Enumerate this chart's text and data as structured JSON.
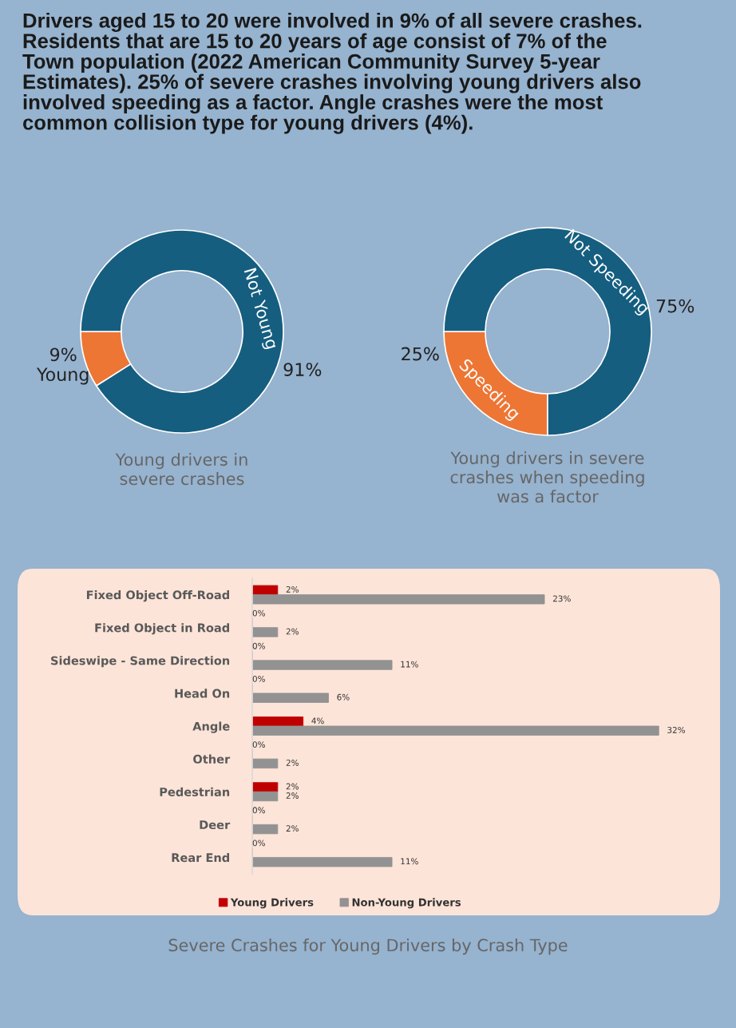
{
  "chart_data": [
    {
      "type": "donut",
      "title": "Young drivers in\nsevere crashes",
      "annotations": [
        "Drivers aged 15 to 20 were involved in 9% of all severe crashes.\nResidents that are 15 to 20 years of age consist of 7% of the\nTown population (2022 American Community Survey 5-year\nEstimates). 25% of severe crashes involving young drivers also\ninvolved speeding as a factor. Angle crashes were the most\ncommon collision type for young drivers (4%)."
      ],
      "categories": [
        "Young",
        "Not Young"
      ],
      "values": [
        9,
        91
      ],
      "colors": [
        "#ed7634",
        "#155e80"
      ],
      "value_labels": [
        "9%",
        "91%"
      ]
    },
    {
      "type": "donut",
      "title": "Young drivers in severe\ncrashes when speeding\nwas a factor",
      "categories": [
        "Speeding",
        "Not Speeding"
      ],
      "values": [
        25,
        75
      ],
      "colors": [
        "#ed7634",
        "#155e80"
      ],
      "value_labels": [
        "25%",
        "75%"
      ]
    },
    {
      "type": "bar",
      "orientation": "horizontal",
      "title": "Severe Crashes for Young Drivers by Crash Type",
      "legend": "bottom",
      "categories": [
        "Fixed Object Off-Road",
        "Fixed Object in Road",
        "Sideswipe - Same Direction",
        "Head On",
        "Angle",
        "Other",
        "Pedestrian",
        "Deer",
        "Rear End"
      ],
      "series": [
        {
          "name": "Young Drivers",
          "color": "#c00000",
          "values": [
            2,
            0,
            0,
            0,
            4,
            0,
            2,
            0,
            0
          ],
          "value_labels": [
            "2%",
            "0%",
            "0%",
            "0%",
            "4%",
            "0%",
            "2%",
            "0%",
            "0%"
          ]
        },
        {
          "name": "Non-Young Drivers",
          "color": "#929292",
          "values": [
            23,
            2,
            11,
            6,
            32,
            2,
            2,
            2,
            11
          ],
          "value_labels": [
            "23%",
            "2%",
            "11%",
            "6%",
            "32%",
            "2%",
            "2%",
            "2%",
            "11%"
          ]
        }
      ]
    }
  ]
}
